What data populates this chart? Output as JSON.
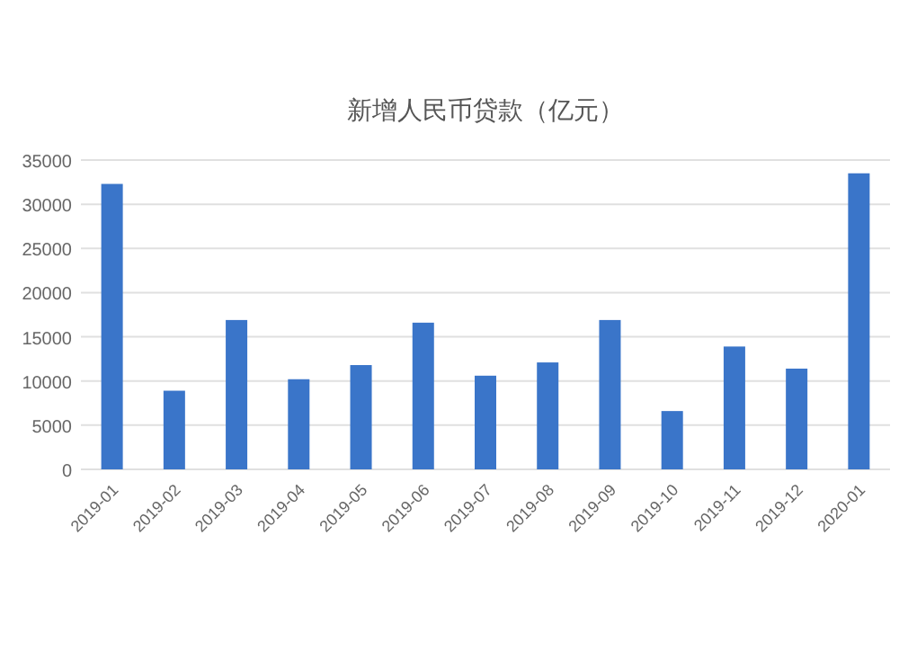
{
  "chart_data": {
    "type": "bar",
    "title": "新增人民币贷款（亿元）",
    "categories": [
      "2019-01",
      "2019-02",
      "2019-03",
      "2019-04",
      "2019-05",
      "2019-06",
      "2019-07",
      "2019-08",
      "2019-09",
      "2019-10",
      "2019-11",
      "2019-12",
      "2020-01"
    ],
    "values": [
      32300,
      8900,
      16900,
      10200,
      11800,
      16600,
      10600,
      12100,
      16900,
      6600,
      13900,
      11400,
      33500
    ],
    "color": "#3a75c9",
    "ylim": [
      0,
      35000
    ],
    "yticks": [
      0,
      5000,
      10000,
      15000,
      20000,
      25000,
      30000,
      35000
    ],
    "grid": "y"
  }
}
